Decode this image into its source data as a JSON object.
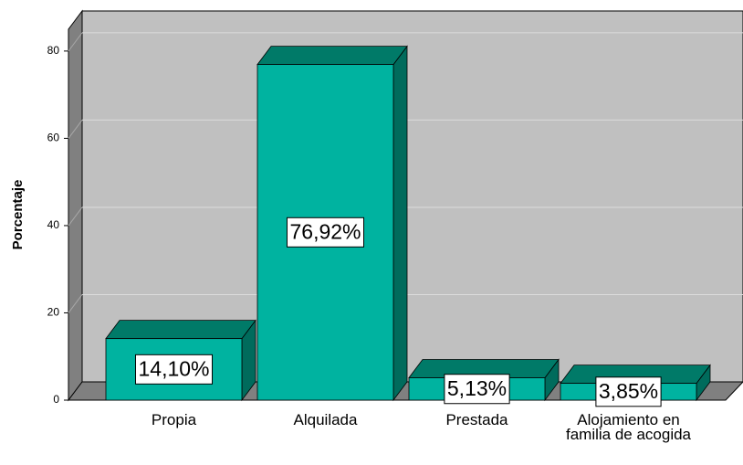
{
  "chart_data": {
    "type": "bar3d",
    "categories": [
      "Propia",
      "Alquilada",
      "Prestada",
      "Alojamiento en familia de acogida"
    ],
    "values": [
      14.1,
      76.92,
      5.13,
      3.85
    ],
    "value_labels": [
      "14,10%",
      "76,92%",
      "5,13%",
      "3,85%"
    ],
    "color": "#00b3a0",
    "ylabel": "Porcentaje",
    "ylim": [
      0,
      85
    ],
    "yticks": [
      0,
      20,
      40,
      60,
      80
    ],
    "grid": true
  }
}
